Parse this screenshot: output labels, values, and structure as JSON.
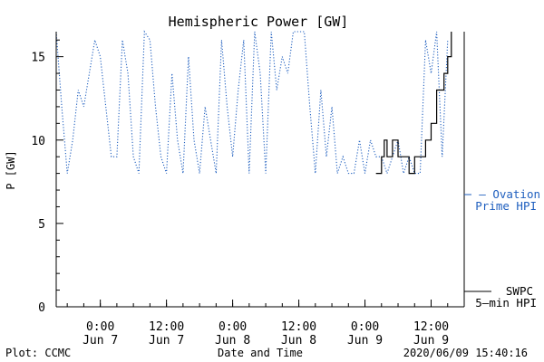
{
  "chart_data": {
    "type": "line",
    "title": "Hemispheric Power [GW]",
    "xlabel": "Date and Time",
    "ylabel": "P [GW]",
    "ylim": [
      0,
      16.5
    ],
    "yticks": [
      0,
      5,
      10,
      15
    ],
    "xlim": [
      "2020-06-06T16:00",
      "2020-06-09T18:00"
    ],
    "xticks": [
      {
        "t": "2020-06-07T00:00",
        "line1": "0:00",
        "line2": "Jun 7"
      },
      {
        "t": "2020-06-07T12:00",
        "line1": "12:00",
        "line2": "Jun 7"
      },
      {
        "t": "2020-06-08T00:00",
        "line1": "0:00",
        "line2": "Jun 8"
      },
      {
        "t": "2020-06-08T12:00",
        "line1": "12:00",
        "line2": "Jun 8"
      },
      {
        "t": "2020-06-09T00:00",
        "line1": "0:00",
        "line2": "Jun 9"
      },
      {
        "t": "2020-06-09T12:00",
        "line1": "12:00",
        "line2": "Jun 9"
      }
    ],
    "grid": false,
    "legend_position": "right",
    "series": [
      {
        "name": "Ovation Prime HPI",
        "legend_lines": [
          "— Ovation",
          "Prime HPI"
        ],
        "color": "#1f5fbf",
        "style": "dotted",
        "points": [
          [
            "2020-06-06T16:00",
            16.5
          ],
          [
            "2020-06-06T17:00",
            12
          ],
          [
            "2020-06-06T18:00",
            8
          ],
          [
            "2020-06-06T19:00",
            10
          ],
          [
            "2020-06-06T20:00",
            13
          ],
          [
            "2020-06-06T21:00",
            12
          ],
          [
            "2020-06-06T22:00",
            14
          ],
          [
            "2020-06-06T23:00",
            16
          ],
          [
            "2020-06-07T00:00",
            15
          ],
          [
            "2020-06-07T01:00",
            12
          ],
          [
            "2020-06-07T02:00",
            9
          ],
          [
            "2020-06-07T03:00",
            9
          ],
          [
            "2020-06-07T04:00",
            16
          ],
          [
            "2020-06-07T05:00",
            14
          ],
          [
            "2020-06-07T06:00",
            9
          ],
          [
            "2020-06-07T07:00",
            8
          ],
          [
            "2020-06-07T08:00",
            16.5
          ],
          [
            "2020-06-07T09:00",
            16
          ],
          [
            "2020-06-07T10:00",
            12
          ],
          [
            "2020-06-07T11:00",
            9
          ],
          [
            "2020-06-07T12:00",
            8
          ],
          [
            "2020-06-07T13:00",
            14
          ],
          [
            "2020-06-07T14:00",
            10
          ],
          [
            "2020-06-07T15:00",
            8
          ],
          [
            "2020-06-07T16:00",
            15
          ],
          [
            "2020-06-07T17:00",
            10
          ],
          [
            "2020-06-07T18:00",
            8
          ],
          [
            "2020-06-07T19:00",
            12
          ],
          [
            "2020-06-07T20:00",
            10
          ],
          [
            "2020-06-07T21:00",
            8
          ],
          [
            "2020-06-07T22:00",
            16
          ],
          [
            "2020-06-07T23:00",
            12
          ],
          [
            "2020-06-08T00:00",
            9
          ],
          [
            "2020-06-08T01:00",
            13
          ],
          [
            "2020-06-08T02:00",
            16
          ],
          [
            "2020-06-08T03:00",
            8
          ],
          [
            "2020-06-08T04:00",
            16.5
          ],
          [
            "2020-06-08T05:00",
            14
          ],
          [
            "2020-06-08T06:00",
            8
          ],
          [
            "2020-06-08T07:00",
            16.5
          ],
          [
            "2020-06-08T08:00",
            13
          ],
          [
            "2020-06-08T09:00",
            15
          ],
          [
            "2020-06-08T10:00",
            14
          ],
          [
            "2020-06-08T11:00",
            16.5
          ],
          [
            "2020-06-08T12:00",
            16.5
          ],
          [
            "2020-06-08T13:00",
            16.5
          ],
          [
            "2020-06-08T14:00",
            12
          ],
          [
            "2020-06-08T15:00",
            8
          ],
          [
            "2020-06-08T16:00",
            13
          ],
          [
            "2020-06-08T17:00",
            9
          ],
          [
            "2020-06-08T18:00",
            12
          ],
          [
            "2020-06-08T19:00",
            8
          ],
          [
            "2020-06-08T20:00",
            9
          ],
          [
            "2020-06-08T21:00",
            8
          ],
          [
            "2020-06-08T22:00",
            8
          ],
          [
            "2020-06-08T23:00",
            10
          ],
          [
            "2020-06-09T00:00",
            8
          ],
          [
            "2020-06-09T01:00",
            10
          ],
          [
            "2020-06-09T02:00",
            9
          ],
          [
            "2020-06-09T03:00",
            9
          ],
          [
            "2020-06-09T04:00",
            8
          ],
          [
            "2020-06-09T05:00",
            9
          ],
          [
            "2020-06-09T06:00",
            10
          ],
          [
            "2020-06-09T07:00",
            8
          ],
          [
            "2020-06-09T08:00",
            9
          ],
          [
            "2020-06-09T09:00",
            8
          ],
          [
            "2020-06-09T10:00",
            8
          ],
          [
            "2020-06-09T11:00",
            16
          ],
          [
            "2020-06-09T12:00",
            14
          ],
          [
            "2020-06-09T13:00",
            16.5
          ],
          [
            "2020-06-09T14:00",
            9
          ],
          [
            "2020-06-09T15:00",
            16
          ]
        ]
      },
      {
        "name": "SWPC 5-min HPI",
        "legend_lines": [
          "SWPC",
          "5—min HPI"
        ],
        "color": "#000000",
        "style": "solid",
        "step": true,
        "points": [
          [
            "2020-06-09T02:00",
            8
          ],
          [
            "2020-06-09T03:00",
            9
          ],
          [
            "2020-06-09T03:30",
            10
          ],
          [
            "2020-06-09T04:00",
            9
          ],
          [
            "2020-06-09T05:00",
            10
          ],
          [
            "2020-06-09T06:00",
            9
          ],
          [
            "2020-06-09T07:00",
            9
          ],
          [
            "2020-06-09T08:00",
            8
          ],
          [
            "2020-06-09T09:00",
            9
          ],
          [
            "2020-06-09T10:00",
            9
          ],
          [
            "2020-06-09T11:00",
            10
          ],
          [
            "2020-06-09T12:00",
            11
          ],
          [
            "2020-06-09T13:00",
            13
          ],
          [
            "2020-06-09T13:40",
            13
          ],
          [
            "2020-06-09T14:20",
            14
          ],
          [
            "2020-06-09T15:00",
            15
          ],
          [
            "2020-06-09T15:40",
            16.5
          ]
        ]
      }
    ]
  },
  "footer": {
    "left": "Plot: CCMC",
    "right": "2020/06/09 15:40:16"
  }
}
